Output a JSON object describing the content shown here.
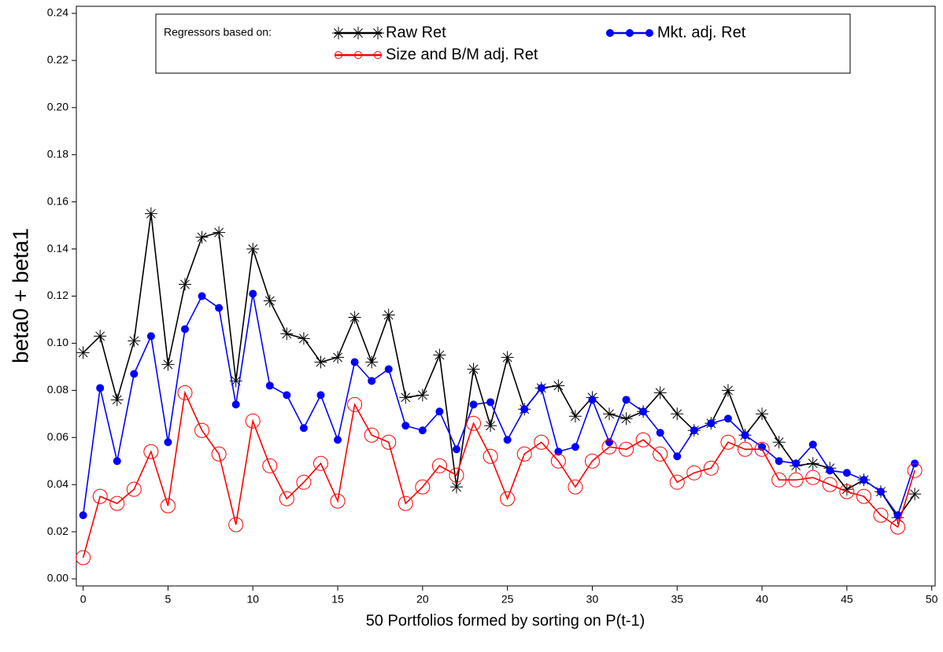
{
  "chart_data": {
    "type": "line",
    "xlabel": "50 Portfolios formed by sorting on P(t-1)",
    "ylabel": "beta0 + beta1",
    "legend_title": "Regressors based on:",
    "x": [
      0,
      1,
      2,
      3,
      4,
      5,
      6,
      7,
      8,
      9,
      10,
      11,
      12,
      13,
      14,
      15,
      16,
      17,
      18,
      19,
      20,
      21,
      22,
      23,
      24,
      25,
      26,
      27,
      28,
      29,
      30,
      31,
      32,
      33,
      34,
      35,
      36,
      37,
      38,
      39,
      40,
      41,
      42,
      43,
      44,
      45,
      46,
      47,
      48,
      49
    ],
    "series": [
      {
        "name": "Raw Ret",
        "color": "#000000",
        "marker": "star",
        "values": [
          0.096,
          0.103,
          0.076,
          0.101,
          0.155,
          0.091,
          0.125,
          0.145,
          0.147,
          0.084,
          0.14,
          0.118,
          0.104,
          0.102,
          0.092,
          0.094,
          0.111,
          0.092,
          0.112,
          0.077,
          0.078,
          0.095,
          0.039,
          0.089,
          0.065,
          0.094,
          0.072,
          0.081,
          0.082,
          0.069,
          0.077,
          0.07,
          0.068,
          0.071,
          0.079,
          0.07,
          0.063,
          0.066,
          0.08,
          0.061,
          0.07,
          0.058,
          0.048,
          0.049,
          0.047,
          0.038,
          0.042,
          0.037,
          0.026,
          0.036
        ]
      },
      {
        "name": "Mkt. adj. Ret",
        "color": "#0000ff",
        "marker": "dot",
        "values": [
          0.027,
          0.081,
          0.05,
          0.087,
          0.103,
          0.058,
          0.106,
          0.12,
          0.115,
          0.074,
          0.121,
          0.082,
          0.078,
          0.064,
          0.078,
          0.059,
          0.092,
          0.084,
          0.089,
          0.065,
          0.063,
          0.071,
          0.055,
          0.074,
          0.075,
          0.059,
          0.072,
          0.081,
          0.054,
          0.056,
          0.076,
          0.058,
          0.076,
          0.071,
          0.062,
          0.052,
          0.063,
          0.066,
          0.068,
          0.061,
          0.056,
          0.05,
          0.049,
          0.057,
          0.046,
          0.045,
          0.042,
          0.037,
          0.027,
          0.049
        ]
      },
      {
        "name": "Size and B/M adj. Ret",
        "color": "#ff0000",
        "marker": "circle",
        "values": [
          0.009,
          0.035,
          0.032,
          0.038,
          0.054,
          0.031,
          0.079,
          0.063,
          0.053,
          0.023,
          0.067,
          0.048,
          0.034,
          0.041,
          0.049,
          0.033,
          0.074,
          0.061,
          0.058,
          0.032,
          0.039,
          0.048,
          0.044,
          0.066,
          0.052,
          0.034,
          0.053,
          0.058,
          0.05,
          0.039,
          0.05,
          0.056,
          0.055,
          0.059,
          0.053,
          0.041,
          0.045,
          0.047,
          0.058,
          0.055,
          0.055,
          0.042,
          0.042,
          0.043,
          0.04,
          0.037,
          0.035,
          0.027,
          0.022,
          0.046
        ]
      }
    ],
    "xlim": [
      -0.4,
      50.2
    ],
    "xticks": [
      0,
      5,
      10,
      15,
      20,
      25,
      30,
      35,
      40,
      45,
      50
    ],
    "ylim": [
      -0.003,
      0.243
    ],
    "yticks": [
      {
        "value": 0,
        "label": "0.00"
      },
      {
        "value": 0.02,
        "label": "0.02"
      },
      {
        "value": 0.04,
        "label": "0.04"
      },
      {
        "value": 0.06,
        "label": "0.06"
      },
      {
        "value": 0.08,
        "label": "0.08"
      },
      {
        "value": 0.1,
        "label": "0.10"
      },
      {
        "value": 0.12,
        "label": "0.12"
      },
      {
        "value": 0.14,
        "label": "0.14"
      },
      {
        "value": 0.16,
        "label": "0.16"
      },
      {
        "value": 0.18,
        "label": "0.18"
      },
      {
        "value": 0.2,
        "label": "0.20"
      },
      {
        "value": 0.22,
        "label": "0.22"
      },
      {
        "value": 0.24,
        "label": "0.24"
      }
    ]
  }
}
